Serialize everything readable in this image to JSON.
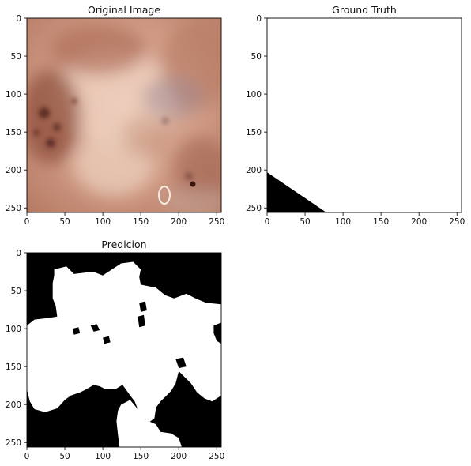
{
  "panels": [
    {
      "id": "original",
      "title": "Original Image",
      "xticks": [
        "0",
        "50",
        "100",
        "150",
        "200",
        "250"
      ],
      "yticks": [
        "0",
        "50",
        "100",
        "150",
        "200",
        "250"
      ]
    },
    {
      "id": "ground_truth",
      "title": "Ground Truth",
      "xticks": [
        "0",
        "50",
        "100",
        "150",
        "200",
        "250"
      ],
      "yticks": [
        "0",
        "50",
        "100",
        "150",
        "200",
        "250"
      ]
    },
    {
      "id": "prediction",
      "title": "Predicion",
      "xticks": [
        "0",
        "50",
        "100",
        "150",
        "200",
        "250"
      ],
      "yticks": [
        "0",
        "50",
        "100",
        "150",
        "200",
        "250"
      ]
    }
  ],
  "chart_data": [
    {
      "type": "heatmap",
      "title": "Original Image",
      "x_range": [
        0,
        256
      ],
      "y_range": [
        0,
        256
      ],
      "y_inverted": true,
      "xticks": [
        0,
        50,
        100,
        150,
        200,
        250
      ],
      "yticks": [
        0,
        50,
        100,
        150,
        200,
        250
      ],
      "content": "RGB dermoscopy skin lesion photo"
    },
    {
      "type": "heatmap",
      "title": "Ground Truth",
      "x_range": [
        0,
        256
      ],
      "y_range": [
        0,
        256
      ],
      "y_inverted": true,
      "xticks": [
        0,
        50,
        100,
        150,
        200,
        250
      ],
      "yticks": [
        0,
        50,
        100,
        150,
        200,
        250
      ],
      "colors": {
        "foreground": "#ffffff",
        "background": "#000000"
      },
      "background_polygon": [
        [
          0,
          203
        ],
        [
          0,
          256
        ],
        [
          78,
          256
        ]
      ]
    },
    {
      "type": "heatmap",
      "title": "Predicion",
      "x_range": [
        0,
        256
      ],
      "y_range": [
        0,
        256
      ],
      "y_inverted": true,
      "xticks": [
        0,
        50,
        100,
        150,
        200,
        250
      ],
      "yticks": [
        0,
        50,
        100,
        150,
        200,
        250
      ],
      "colors": {
        "foreground": "#ffffff",
        "background": "#000000"
      },
      "foreground_polygons": [
        [
          [
            36,
            22
          ],
          [
            52,
            18
          ],
          [
            62,
            28
          ],
          [
            78,
            26
          ],
          [
            90,
            26
          ],
          [
            100,
            30
          ],
          [
            112,
            22
          ],
          [
            124,
            14
          ],
          [
            140,
            12
          ],
          [
            150,
            22
          ],
          [
            148,
            32
          ],
          [
            150,
            42
          ],
          [
            170,
            46
          ],
          [
            182,
            56
          ],
          [
            194,
            60
          ],
          [
            210,
            54
          ],
          [
            222,
            60
          ],
          [
            236,
            66
          ],
          [
            256,
            68
          ],
          [
            256,
            92
          ],
          [
            246,
            96
          ],
          [
            246,
            106
          ],
          [
            250,
            116
          ],
          [
            256,
            120
          ],
          [
            256,
            188
          ],
          [
            244,
            196
          ],
          [
            234,
            192
          ],
          [
            224,
            184
          ],
          [
            216,
            172
          ],
          [
            208,
            164
          ],
          [
            200,
            156
          ],
          [
            196,
            172
          ],
          [
            190,
            182
          ],
          [
            182,
            190
          ],
          [
            176,
            196
          ],
          [
            170,
            204
          ],
          [
            168,
            218
          ],
          [
            160,
            224
          ],
          [
            152,
            216
          ],
          [
            146,
            206
          ],
          [
            142,
            196
          ],
          [
            136,
            188
          ],
          [
            126,
            174
          ],
          [
            116,
            180
          ],
          [
            104,
            180
          ],
          [
            96,
            176
          ],
          [
            88,
            174
          ],
          [
            78,
            180
          ],
          [
            70,
            184
          ],
          [
            58,
            188
          ],
          [
            50,
            194
          ],
          [
            40,
            205
          ],
          [
            24,
            210
          ],
          [
            10,
            206
          ],
          [
            4,
            196
          ],
          [
            0,
            180
          ],
          [
            0,
            96
          ],
          [
            10,
            88
          ],
          [
            28,
            86
          ],
          [
            40,
            84
          ],
          [
            38,
            70
          ],
          [
            34,
            60
          ],
          [
            34,
            40
          ],
          [
            36,
            30
          ]
        ],
        [
          [
            124,
            200
          ],
          [
            136,
            194
          ],
          [
            146,
            206
          ],
          [
            156,
            220
          ],
          [
            170,
            226
          ],
          [
            176,
            236
          ],
          [
            190,
            238
          ],
          [
            200,
            244
          ],
          [
            204,
            256
          ],
          [
            122,
            256
          ],
          [
            120,
            240
          ],
          [
            118,
            222
          ],
          [
            120,
            208
          ]
        ]
      ],
      "background_holes": [
        [
          [
            60,
            100
          ],
          [
            68,
            98
          ],
          [
            70,
            106
          ],
          [
            62,
            108
          ]
        ],
        [
          [
            84,
            96
          ],
          [
            92,
            94
          ],
          [
            96,
            102
          ],
          [
            88,
            104
          ]
        ],
        [
          [
            100,
            112
          ],
          [
            108,
            110
          ],
          [
            110,
            118
          ],
          [
            102,
            120
          ]
        ],
        [
          [
            148,
            66
          ],
          [
            156,
            64
          ],
          [
            158,
            76
          ],
          [
            150,
            78
          ]
        ],
        [
          [
            146,
            84
          ],
          [
            154,
            82
          ],
          [
            156,
            96
          ],
          [
            148,
            98
          ]
        ],
        [
          [
            196,
            140
          ],
          [
            206,
            138
          ],
          [
            210,
            150
          ],
          [
            200,
            152
          ]
        ]
      ]
    }
  ]
}
